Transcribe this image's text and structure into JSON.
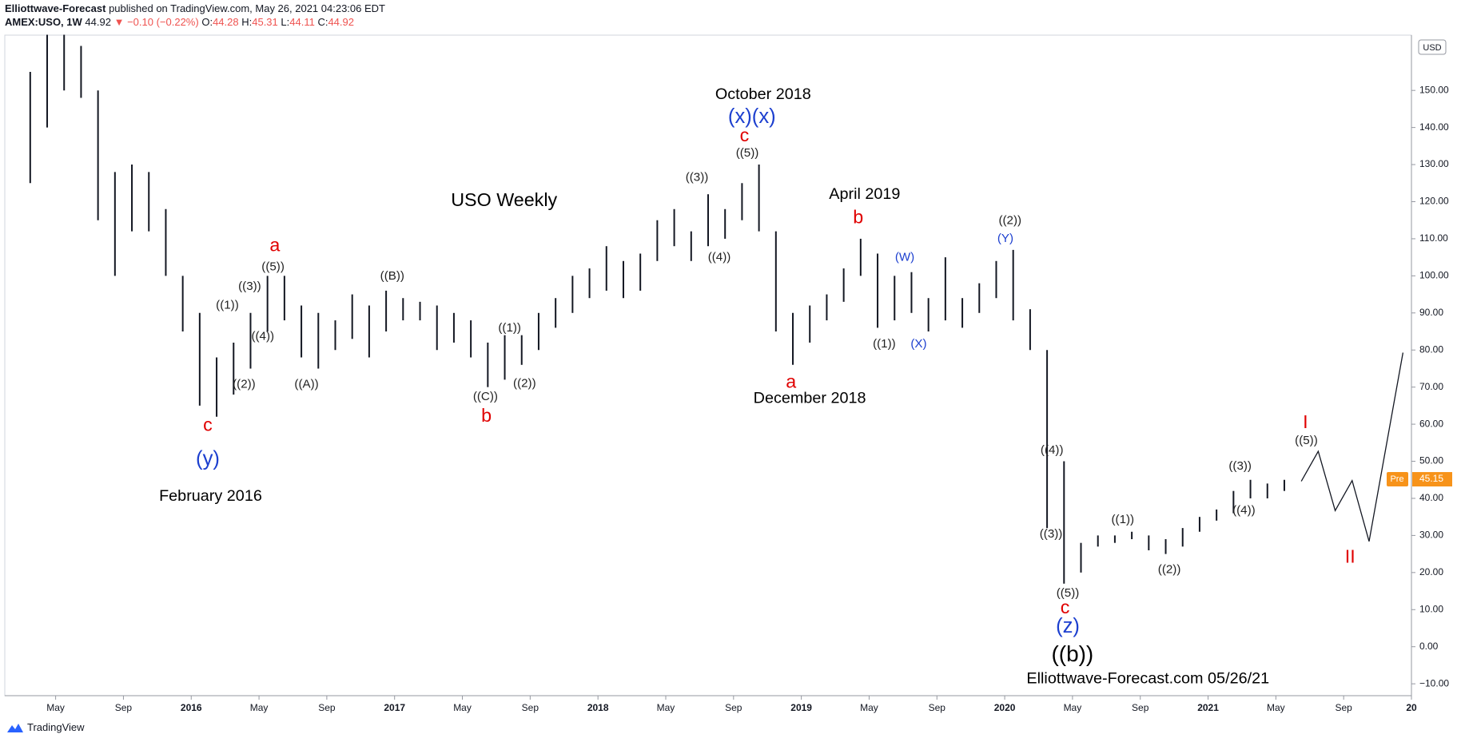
{
  "header": {
    "author": "Elliottwave-Forecast",
    "published": "published on TradingView.com, May 26, 2021 04:23:06 EDT",
    "symbol": "AMEX:USO, 1W",
    "last": "44.92",
    "change": "▼ −0.10 (−0.22%)",
    "open_label": "O:",
    "open": "44.28",
    "high_label": "H:",
    "high": "45.31",
    "low_label": "L:",
    "low": "44.11",
    "close_label": "C:",
    "close": "44.92"
  },
  "footer": {
    "brand": "TradingView"
  },
  "chart_data": {
    "type": "ohlc",
    "currency": "USD",
    "color": "#131722",
    "x": [
      "2015-03",
      "2015-04",
      "2015-05",
      "2015-06",
      "2015-07",
      "2015-08",
      "2015-09",
      "2015-10",
      "2015-11",
      "2015-12",
      "2016-01",
      "2016-02",
      "2016-03",
      "2016-04",
      "2016-05",
      "2016-06",
      "2016-07",
      "2016-08",
      "2016-09",
      "2016-10",
      "2016-11",
      "2016-12",
      "2017-01",
      "2017-02",
      "2017-03",
      "2017-04",
      "2017-05",
      "2017-06",
      "2017-07",
      "2017-08",
      "2017-09",
      "2017-10",
      "2017-11",
      "2017-12",
      "2018-01",
      "2018-02",
      "2018-03",
      "2018-04",
      "2018-05",
      "2018-06",
      "2018-07",
      "2018-08",
      "2018-09",
      "2018-10",
      "2018-11",
      "2018-12",
      "2019-01",
      "2019-02",
      "2019-03",
      "2019-04",
      "2019-05",
      "2019-06",
      "2019-07",
      "2019-08",
      "2019-09",
      "2019-10",
      "2019-11",
      "2019-12",
      "2020-01",
      "2020-02",
      "2020-03",
      "2020-04",
      "2020-05",
      "2020-06",
      "2020-07",
      "2020-08",
      "2020-09",
      "2020-10",
      "2020-11",
      "2020-12",
      "2021-01",
      "2021-02",
      "2021-03",
      "2021-04",
      "2021-05"
    ],
    "high": [
      155,
      165,
      165,
      162,
      150,
      128,
      130,
      128,
      118,
      100,
      90,
      78,
      82,
      90,
      100,
      100,
      92,
      90,
      88,
      95,
      92,
      96,
      94,
      93,
      92,
      90,
      88,
      82,
      84,
      84,
      90,
      94,
      100,
      102,
      108,
      104,
      106,
      115,
      118,
      112,
      122,
      118,
      125,
      130,
      112,
      90,
      92,
      95,
      102,
      110,
      106,
      100,
      101,
      94,
      105,
      94,
      98,
      104,
      107,
      91,
      80,
      50,
      28,
      30,
      30,
      31,
      30,
      29,
      32,
      35,
      37,
      42,
      45,
      44,
      45
    ],
    "low": [
      125,
      140,
      150,
      148,
      115,
      100,
      112,
      112,
      100,
      85,
      65,
      62,
      68,
      75,
      85,
      88,
      78,
      75,
      80,
      83,
      78,
      85,
      88,
      88,
      80,
      82,
      78,
      70,
      72,
      76,
      80,
      86,
      90,
      94,
      96,
      94,
      96,
      104,
      108,
      104,
      108,
      110,
      115,
      112,
      85,
      76,
      82,
      88,
      93,
      100,
      86,
      88,
      90,
      85,
      88,
      86,
      90,
      94,
      88,
      80,
      32,
      17,
      20,
      27,
      28,
      29,
      26,
      25,
      27,
      31,
      34,
      36,
      40,
      40,
      42
    ],
    "projection": {
      "x": [
        "2021-06",
        "2021-07",
        "2021-08",
        "2021-09",
        "2021-10",
        "2021-12"
      ],
      "values": [
        44.6,
        52.7,
        36.7,
        44.8,
        28.4,
        79.3
      ]
    },
    "last_price": {
      "tag": "Pre",
      "value": 45.15,
      "label": "45.15",
      "color": "#f7931a"
    },
    "xlim": [
      "2015-02",
      "2022-01"
    ],
    "xticks": [
      {
        "value": "2015-05",
        "label": "May"
      },
      {
        "value": "2015-09",
        "label": "Sep"
      },
      {
        "value": "2016-01",
        "label": "2016"
      },
      {
        "value": "2016-05",
        "label": "May"
      },
      {
        "value": "2016-09",
        "label": "Sep"
      },
      {
        "value": "2017-01",
        "label": "2017"
      },
      {
        "value": "2017-05",
        "label": "May"
      },
      {
        "value": "2017-09",
        "label": "Sep"
      },
      {
        "value": "2018-01",
        "label": "2018"
      },
      {
        "value": "2018-05",
        "label": "May"
      },
      {
        "value": "2018-09",
        "label": "Sep"
      },
      {
        "value": "2019-01",
        "label": "2019"
      },
      {
        "value": "2019-05",
        "label": "May"
      },
      {
        "value": "2019-09",
        "label": "Sep"
      },
      {
        "value": "2020-01",
        "label": "2020"
      },
      {
        "value": "2020-05",
        "label": "May"
      },
      {
        "value": "2020-09",
        "label": "Sep"
      },
      {
        "value": "2021-01",
        "label": "2021"
      },
      {
        "value": "2021-05",
        "label": "May"
      },
      {
        "value": "2021-09",
        "label": "Sep"
      },
      {
        "value": "2022-01",
        "label": "20"
      }
    ],
    "ylim": [
      -13.2,
      164.9
    ],
    "yticks": [
      {
        "value": -10,
        "label": "−10.00"
      },
      {
        "value": 0,
        "label": "0.00"
      },
      {
        "value": 10,
        "label": "10.00"
      },
      {
        "value": 20,
        "label": "20.00"
      },
      {
        "value": 30,
        "label": "30.00"
      },
      {
        "value": 40,
        "label": "40.00"
      },
      {
        "value": 50,
        "label": "50.00"
      },
      {
        "value": 60,
        "label": "60.00"
      },
      {
        "value": 70,
        "label": "70.00"
      },
      {
        "value": 80,
        "label": "80.00"
      },
      {
        "value": 90,
        "label": "90.00"
      },
      {
        "value": 100,
        "label": "100.00"
      },
      {
        "value": 110,
        "label": "110.00"
      },
      {
        "value": 120,
        "label": "120.00"
      },
      {
        "value": 130,
        "label": "130.00"
      },
      {
        "value": 140,
        "label": "140.00"
      },
      {
        "value": 150,
        "label": "150.00"
      }
    ],
    "annotations": [
      {
        "text": "October 2018",
        "color": "#000000"
      },
      {
        "text": "(x)(x)",
        "color": "#1c3fcf"
      },
      {
        "text": "c",
        "color": "#e00000"
      },
      {
        "text": "((5))",
        "color": "#222222"
      },
      {
        "text": "((3))",
        "color": "#222222"
      },
      {
        "text": "((4))",
        "color": "#222222"
      },
      {
        "text": "USO Weekly",
        "color": "#000000"
      },
      {
        "text": "April 2019",
        "color": "#000000"
      },
      {
        "text": "b",
        "color": "#e00000"
      },
      {
        "text": "((2))",
        "color": "#222222"
      },
      {
        "text": "(Y)",
        "color": "#1c3fcf"
      },
      {
        "text": "(W)",
        "color": "#1c3fcf"
      },
      {
        "text": "(X)",
        "color": "#1c3fcf"
      },
      {
        "text": "((1))",
        "color": "#222222"
      },
      {
        "text": "a",
        "color": "#e00000"
      },
      {
        "text": "December 2018",
        "color": "#000000"
      },
      {
        "text": "a",
        "color": "#e00000"
      },
      {
        "text": "((5))",
        "color": "#222222"
      },
      {
        "text": "((3))",
        "color": "#222222"
      },
      {
        "text": "((1))",
        "color": "#222222"
      },
      {
        "text": "((4))",
        "color": "#222222"
      },
      {
        "text": "((2))",
        "color": "#222222"
      },
      {
        "text": "((A))",
        "color": "#222222"
      },
      {
        "text": "((B))",
        "color": "#222222"
      },
      {
        "text": "((1))",
        "color": "#222222"
      },
      {
        "text": "((2))",
        "color": "#222222"
      },
      {
        "text": "((C))",
        "color": "#222222"
      },
      {
        "text": "b",
        "color": "#e00000"
      },
      {
        "text": "c",
        "color": "#e00000"
      },
      {
        "text": "(y)",
        "color": "#1c3fcf"
      },
      {
        "text": "February 2016",
        "color": "#000000"
      },
      {
        "text": "((4))",
        "color": "#222222"
      },
      {
        "text": "((3))",
        "color": "#222222"
      },
      {
        "text": "((5))",
        "color": "#222222"
      },
      {
        "text": "c",
        "color": "#e00000"
      },
      {
        "text": "(z)",
        "color": "#1c3fcf"
      },
      {
        "text": "((b))",
        "color": "#000000"
      },
      {
        "text": "Elliottwave-Forecast.com 05/26/21",
        "color": "#000000"
      },
      {
        "text": "((1))",
        "color": "#222222"
      },
      {
        "text": "((2))",
        "color": "#222222"
      },
      {
        "text": "((3))",
        "color": "#222222"
      },
      {
        "text": "((4))",
        "color": "#222222"
      },
      {
        "text": "((5))",
        "color": "#222222"
      },
      {
        "text": "I",
        "color": "#e00000"
      },
      {
        "text": "II",
        "color": "#e00000"
      }
    ]
  }
}
